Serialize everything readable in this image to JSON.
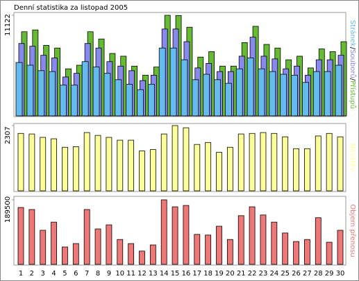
{
  "chart_data": [
    {
      "type": "bar",
      "title": "Denní statistika za listopad 2005",
      "ylim": [
        0,
        11122
      ],
      "yticks": [
        11122
      ],
      "legend_separator": "/",
      "series": [
        {
          "name": "Přístupů",
          "color": "#66bb33",
          "values": [
            9300,
            9500,
            7800,
            7500,
            5200,
            5600,
            9300,
            8500,
            6900,
            6600,
            5500,
            4500,
            5400,
            11122,
            11100,
            9800,
            6500,
            7100,
            5500,
            5500,
            8100,
            9900,
            7900,
            7500,
            6200,
            6600,
            5300,
            7400,
            7100,
            8200
          ]
        },
        {
          "name": "Souborů",
          "color": "#8888ee",
          "values": [
            8000,
            7700,
            6700,
            6400,
            4300,
            4700,
            8000,
            7500,
            6000,
            5500,
            5000,
            3900,
            4500,
            9600,
            9600,
            8200,
            5300,
            5800,
            4900,
            4900,
            6600,
            8700,
            6600,
            6300,
            5200,
            5500,
            4500,
            6200,
            6200,
            6700
          ]
        },
        {
          "name": "Stránek",
          "color": "#66bbee",
          "values": [
            5900,
            5600,
            5000,
            4900,
            3400,
            3400,
            6000,
            5400,
            4700,
            4000,
            3500,
            2900,
            3500,
            7500,
            7500,
            6200,
            4000,
            4600,
            4000,
            3600,
            5200,
            6400,
            5200,
            4900,
            4600,
            4500,
            3700,
            4900,
            4900,
            5600
          ]
        }
      ]
    },
    {
      "type": "bar",
      "ylim": [
        0,
        2307
      ],
      "yticks": [
        2307
      ],
      "series": [
        {
          "name": "Návštěv",
          "color": "#ffff99",
          "values": [
            2030,
            2010,
            1890,
            1840,
            1540,
            1560,
            2060,
            1960,
            1890,
            1790,
            1790,
            1410,
            1460,
            2010,
            2307,
            2230,
            1640,
            1710,
            1360,
            1540,
            2010,
            2030,
            2060,
            2030,
            1910,
            1490,
            1490,
            1940,
            2030,
            1910
          ]
        }
      ]
    },
    {
      "type": "bar",
      "ylim": [
        0,
        189500
      ],
      "yticks": [
        189500
      ],
      "categories": [
        "1",
        "2",
        "3",
        "4",
        "5",
        "6",
        "7",
        "8",
        "9",
        "10",
        "11",
        "12",
        "13",
        "14",
        "15",
        "16",
        "17",
        "18",
        "19",
        "20",
        "21",
        "22",
        "23",
        "24",
        "25",
        "26",
        "27",
        "28",
        "29",
        "30"
      ],
      "weekend": [
        4,
        5,
        11,
        12,
        18,
        19,
        25,
        26
      ],
      "weekend_color": "#77aa22",
      "series": [
        {
          "name": "Objem přenosu",
          "color": "#ee7777",
          "values": [
            167000,
            161000,
            100000,
            124000,
            51000,
            61000,
            161000,
            104000,
            116000,
            73000,
            61000,
            39000,
            57000,
            189500,
            169000,
            173000,
            88000,
            86000,
            112000,
            73000,
            143000,
            169000,
            145000,
            124000,
            92000,
            67000,
            73000,
            137000,
            65000,
            100000
          ]
        }
      ]
    }
  ]
}
